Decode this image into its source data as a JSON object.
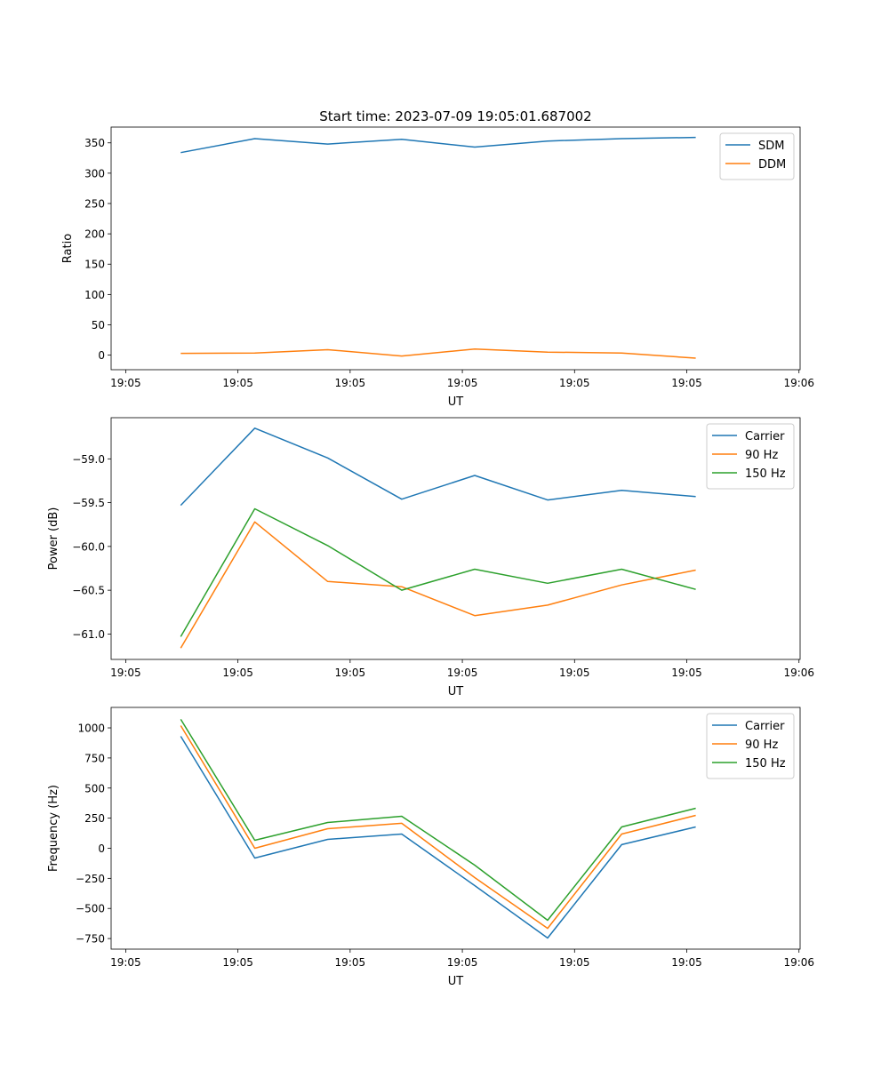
{
  "chart_data": [
    {
      "type": "line",
      "title": "Start time: 2023-07-09 19:05:01.687002",
      "xlabel": "UT",
      "ylabel": "Ratio",
      "x_seconds_after_1905": [
        4.9,
        11.5,
        18.0,
        24.6,
        31.1,
        37.6,
        44.2,
        50.8
      ],
      "xlim": [
        -1.3,
        60.1
      ],
      "xticks": [
        0,
        10,
        20,
        30,
        40,
        50,
        60
      ],
      "xtick_labels": [
        "19:05",
        "19:05",
        "19:05",
        "19:05",
        "19:05",
        "19:05",
        "19:06"
      ],
      "ylim": [
        -24,
        376
      ],
      "yticks": [
        0,
        50,
        100,
        150,
        200,
        250,
        300,
        350
      ],
      "ytick_labels": [
        "0",
        "50",
        "100",
        "150",
        "200",
        "250",
        "300",
        "350"
      ],
      "legend_position": "top-right",
      "series": [
        {
          "name": "SDM",
          "color": "#1f77b4",
          "values": [
            334,
            357,
            348,
            356,
            343,
            353,
            357,
            359
          ]
        },
        {
          "name": "DDM",
          "color": "#ff7f0e",
          "values": [
            3,
            3.5,
            9,
            -1.5,
            10,
            5,
            3.5,
            -5
          ]
        }
      ]
    },
    {
      "type": "line",
      "title": "",
      "xlabel": "UT",
      "ylabel": "Power (dB)",
      "x_seconds_after_1905": [
        4.9,
        11.5,
        18.0,
        24.6,
        31.1,
        37.6,
        44.2,
        50.8
      ],
      "xlim": [
        -1.3,
        60.1
      ],
      "xticks": [
        0,
        10,
        20,
        30,
        40,
        50,
        60
      ],
      "xtick_labels": [
        "19:05",
        "19:05",
        "19:05",
        "19:05",
        "19:05",
        "19:05",
        "19:06"
      ],
      "ylim": [
        -61.29,
        -58.53
      ],
      "yticks": [
        -61.0,
        -60.5,
        -60.0,
        -59.5,
        -59.0
      ],
      "ytick_labels": [
        "−61.0",
        "−60.5",
        "−60.0",
        "−59.5",
        "−59.0"
      ],
      "legend_position": "top-right",
      "series": [
        {
          "name": "Carrier",
          "color": "#1f77b4",
          "values": [
            -59.53,
            -58.65,
            -58.99,
            -59.46,
            -59.19,
            -59.47,
            -59.36,
            -59.43
          ]
        },
        {
          "name": "90 Hz",
          "color": "#ff7f0e",
          "values": [
            -61.16,
            -59.72,
            -60.4,
            -60.46,
            -60.79,
            -60.67,
            -60.44,
            -60.27
          ]
        },
        {
          "name": "150 Hz",
          "color": "#2ca02c",
          "values": [
            -61.03,
            -59.57,
            -59.99,
            -60.5,
            -60.26,
            -60.42,
            -60.26,
            -60.49
          ]
        }
      ]
    },
    {
      "type": "line",
      "title": "",
      "xlabel": "UT",
      "ylabel": "Frequency (Hz)",
      "x_seconds_after_1905": [
        4.9,
        11.5,
        18.0,
        24.6,
        31.1,
        37.6,
        44.2,
        50.8
      ],
      "xlim": [
        -1.3,
        60.1
      ],
      "xticks": [
        0,
        10,
        20,
        30,
        40,
        50,
        60
      ],
      "xtick_labels": [
        "19:05",
        "19:05",
        "19:05",
        "19:05",
        "19:05",
        "19:05",
        "19:06"
      ],
      "ylim": [
        -838,
        1170
      ],
      "yticks": [
        -750,
        -500,
        -250,
        0,
        250,
        500,
        750,
        1000
      ],
      "ytick_labels": [
        "−750",
        "−500",
        "−250",
        "0",
        "250",
        "500",
        "750",
        "1000"
      ],
      "legend_position": "top-right",
      "series": [
        {
          "name": "Carrier",
          "color": "#1f77b4",
          "values": [
            930,
            -81,
            74,
            118,
            -310,
            -746,
            30,
            177
          ]
        },
        {
          "name": "90 Hz",
          "color": "#ff7f0e",
          "values": [
            1019,
            0,
            162,
            207,
            -244,
            -665,
            118,
            273
          ]
        },
        {
          "name": "150 Hz",
          "color": "#2ca02c",
          "values": [
            1071,
            66,
            214,
            266,
            -140,
            -598,
            177,
            332
          ]
        }
      ]
    }
  ]
}
